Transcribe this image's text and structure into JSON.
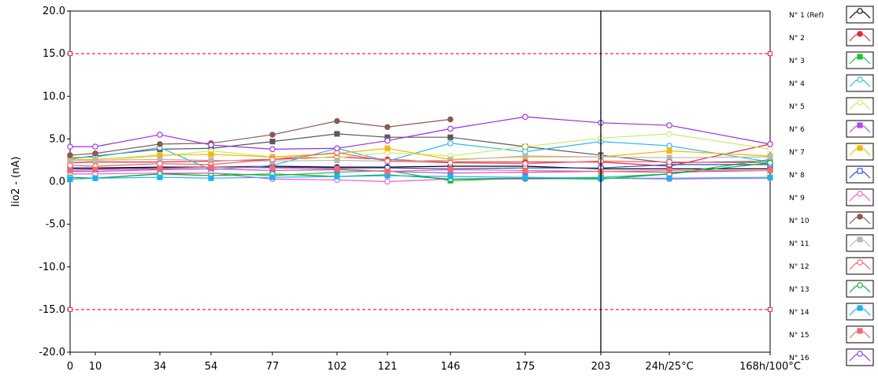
{
  "chart_data": {
    "type": "line",
    "ylabel": "Iio2 - (nA)",
    "ylim": [
      -20,
      20
    ],
    "yticks": [
      "20.0",
      "15.0",
      "10.0",
      "5.0",
      "0.0",
      "-5.0",
      "-10.0",
      "-15.0",
      "-20.0"
    ],
    "x": [
      "0",
      "10",
      "34",
      "54",
      "77",
      "102",
      "121",
      "146",
      "175",
      "203",
      "24h/25°C",
      "168h/100°C"
    ],
    "cursor_x": "203",
    "limit_lines": [
      15,
      -15
    ],
    "limit_color": "#e8283c",
    "series": [
      {
        "name": "N° 1 (Ref)",
        "color": "#000000",
        "marker": "circle-open",
        "values": [
          1.6,
          1.6,
          1.7,
          1.7,
          1.8,
          1.7,
          1.7,
          1.8,
          1.8,
          1.5,
          1.5,
          1.5
        ]
      },
      {
        "name": "N° 2",
        "color": "#e8283c",
        "marker": "circle",
        "values": [
          2.2,
          2.3,
          2.3,
          2.4,
          2.6,
          2.9,
          2.6,
          2.3,
          2.3,
          2.3,
          1.8,
          4.4
        ]
      },
      {
        "name": "N° 3",
        "color": "#1fc23a",
        "marker": "square",
        "values": [
          0.3,
          0.4,
          0.9,
          1.0,
          0.7,
          1.1,
          1.3,
          0.1,
          0.4,
          0.5,
          0.9,
          2.6
        ]
      },
      {
        "name": "N° 4",
        "color": "#2ab8ea",
        "marker": "circle-open",
        "values": [
          2.8,
          2.9,
          4.0,
          1.4,
          1.9,
          3.9,
          2.4,
          4.5,
          3.5,
          4.7,
          4.2,
          2.3
        ]
      },
      {
        "name": "N° 5",
        "color": "#c8ec6e",
        "marker": "circle-open",
        "values": [
          2.5,
          2.4,
          3.0,
          3.6,
          2.9,
          2.8,
          3.4,
          3.0,
          4.1,
          5.1,
          5.6,
          3.8
        ]
      },
      {
        "name": "N° 6",
        "color": "#b24ce8",
        "marker": "square",
        "values": [
          1.2,
          1.2,
          1.4,
          1.5,
          1.3,
          1.4,
          1.2,
          1.0,
          1.1,
          1.2,
          1.1,
          1.3
        ]
      },
      {
        "name": "N° 7",
        "color": "#f5b800",
        "marker": "square",
        "values": [
          2.6,
          2.6,
          3.1,
          3.2,
          2.9,
          3.3,
          3.9,
          2.6,
          2.9,
          2.9,
          3.6,
          3.0
        ]
      },
      {
        "name": "N° 8",
        "color": "#2d47e0",
        "marker": "square-open",
        "values": [
          1.5,
          1.5,
          1.6,
          1.7,
          1.7,
          1.6,
          1.6,
          1.5,
          1.6,
          1.6,
          2.0,
          2.0
        ]
      },
      {
        "name": "N° 9",
        "color": "#ee5ad2",
        "marker": "circle-open",
        "values": [
          0.9,
          0.9,
          1.0,
          1.0,
          0.3,
          0.2,
          0.0,
          0.3,
          0.3,
          0.4,
          0.3,
          0.4
        ]
      },
      {
        "name": "N° 10",
        "color": "#8b5a50",
        "marker": "circle",
        "values": [
          3.1,
          3.3,
          4.4,
          4.5,
          5.5,
          7.1,
          6.4,
          7.3,
          null,
          null,
          null,
          null
        ]
      },
      {
        "name": "N° 11",
        "color": "#b8b8b8",
        "marker": "square",
        "values": [
          2.4,
          2.5,
          2.6,
          2.5,
          2.4,
          2.5,
          2.4,
          2.5,
          3.0,
          2.9,
          2.8,
          2.9
        ]
      },
      {
        "name": "N° 12",
        "color": "#f06060",
        "marker": "circle-open",
        "values": [
          1.9,
          1.8,
          2.1,
          2.0,
          2.6,
          3.4,
          2.4,
          2.2,
          2.1,
          2.4,
          2.3,
          2.2
        ]
      },
      {
        "name": "N° 13",
        "color": "#0fa638",
        "marker": "circle-open",
        "values": [
          0.5,
          0.4,
          0.9,
          0.7,
          0.9,
          0.6,
          0.8,
          0.3,
          0.4,
          0.3,
          0.9,
          2.2
        ]
      },
      {
        "name": "N° 14",
        "color": "#1ab2f2",
        "marker": "square",
        "values": [
          0.3,
          0.4,
          0.5,
          0.4,
          0.5,
          0.6,
          0.7,
          0.6,
          0.5,
          0.4,
          0.4,
          0.5
        ]
      },
      {
        "name": "N° 15",
        "color": "#f36a6a",
        "marker": "square",
        "values": [
          1.3,
          1.4,
          1.5,
          1.7,
          1.6,
          1.5,
          1.2,
          1.4,
          1.3,
          1.2,
          1.3,
          1.3
        ]
      },
      {
        "name": "N° 16",
        "color": "#9b2de0",
        "marker": "circle-open",
        "values": [
          4.1,
          4.1,
          5.5,
          4.3,
          3.8,
          3.9,
          4.8,
          6.2,
          7.6,
          6.9,
          6.6,
          4.4
        ]
      }
    ],
    "extra_series_color": "#5a5a5a",
    "extra_series_values": [
      2.7,
      3.0,
      3.8,
      3.9,
      4.7,
      5.6,
      5.2,
      5.2,
      4.1,
      3.1,
      2.2,
      2.4
    ],
    "grid": false,
    "legend_position": "right"
  }
}
